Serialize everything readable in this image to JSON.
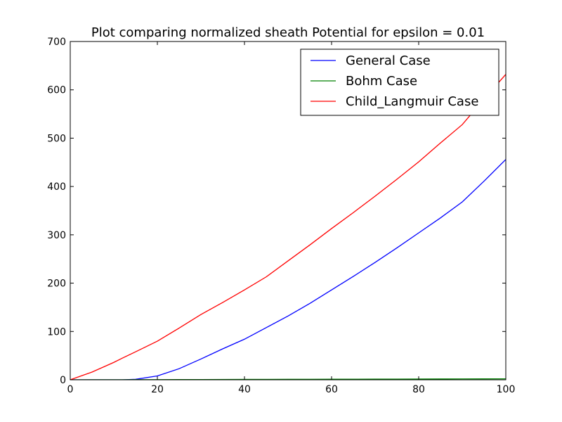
{
  "chart_data": {
    "type": "line",
    "title": "Plot comparing normalized sheath Potential for epsilon = 0.01",
    "xlabel": "",
    "ylabel": "",
    "xlim": [
      0,
      100
    ],
    "ylim": [
      0,
      700
    ],
    "xticks": [
      0,
      20,
      40,
      60,
      80,
      100
    ],
    "yticks": [
      0,
      100,
      200,
      300,
      400,
      500,
      600,
      700
    ],
    "grid": false,
    "legend_position": "top-right",
    "x": [
      0,
      5,
      10,
      12,
      15,
      20,
      25,
      30,
      35,
      40,
      45,
      50,
      55,
      60,
      65,
      70,
      75,
      80,
      85,
      90,
      95,
      100
    ],
    "series": [
      {
        "name": "General Case",
        "color": "#0000ff",
        "values": [
          0,
          0,
          0,
          0,
          1,
          8,
          23,
          43,
          64,
          84,
          108,
          132,
          158,
          186,
          214,
          243,
          273,
          304,
          335,
          368,
          411,
          456
        ]
      },
      {
        "name": "Bohm Case",
        "color": "#008000",
        "values": [
          0,
          0.1,
          0.2,
          0.2,
          0.3,
          0.4,
          0.5,
          0.6,
          0.7,
          0.8,
          0.9,
          1.0,
          1.1,
          1.2,
          1.3,
          1.4,
          1.5,
          1.6,
          1.7,
          1.8,
          1.9,
          2.0
        ]
      },
      {
        "name": "Child_Langmuir Case",
        "color": "#ff0000",
        "values": [
          0,
          16,
          36,
          45,
          58,
          80,
          107,
          135,
          160,
          186,
          213,
          246,
          279,
          313,
          346,
          380,
          415,
          451,
          490,
          528,
          581,
          632
        ]
      }
    ]
  }
}
